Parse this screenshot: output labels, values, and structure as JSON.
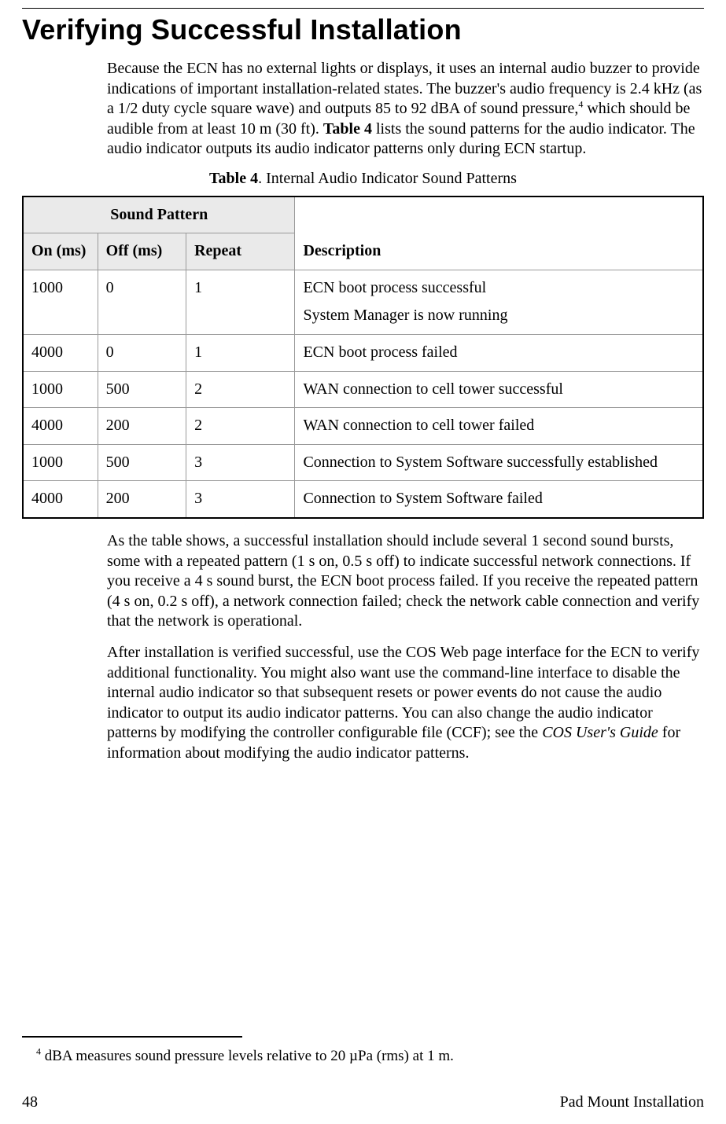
{
  "title": "Verifying Successful Installation",
  "para1": {
    "pre_sup": "Because the ECN has no external lights or displays, it uses an internal audio buzzer to provide indications of important installation-related states.  The buzzer's audio frequency is 2.4 kHz (as a 1/2 duty cycle square wave) and outputs 85 to 92 dBA of sound pressure,",
    "sup": "4",
    "post_sup_pre_bold": " which should be audible from at least 10 m (30 ft).  ",
    "bold": "Table 4",
    "post_bold": " lists the sound patterns for the audio indicator.  The audio indicator outputs its audio indicator patterns only during ECN startup."
  },
  "table_caption": {
    "label": "Table 4",
    "text": ". Internal Audio Indicator Sound Patterns"
  },
  "table": {
    "group_header": "Sound Pattern",
    "headers": {
      "on": "On (ms)",
      "off": "Off (ms)",
      "repeat": "Repeat",
      "desc": "Description"
    },
    "rows": [
      {
        "on": "1000",
        "off": "0",
        "repeat": "1",
        "desc_line1": "ECN boot process successful",
        "desc_line2": "System Manager is now running"
      },
      {
        "on": "4000",
        "off": "0",
        "repeat": "1",
        "desc_line1": "ECN boot process failed",
        "desc_line2": ""
      },
      {
        "on": "1000",
        "off": "500",
        "repeat": "2",
        "desc_line1": "WAN connection to cell tower successful",
        "desc_line2": ""
      },
      {
        "on": "4000",
        "off": "200",
        "repeat": "2",
        "desc_line1": "WAN connection to cell tower failed",
        "desc_line2": ""
      },
      {
        "on": "1000",
        "off": "500",
        "repeat": "3",
        "desc_line1": "Connection to System Software successfully established",
        "desc_line2": ""
      },
      {
        "on": "4000",
        "off": "200",
        "repeat": "3",
        "desc_line1": "Connection to System Software failed",
        "desc_line2": ""
      }
    ]
  },
  "para2": "As the table shows, a successful installation should include several 1 second sound bursts, some with a repeated pattern (1 s on, 0.5 s off) to indicate successful network connections. If you receive a 4 s sound burst, the ECN boot process failed.  If you receive the repeated pattern (4 s on, 0.2 s off), a network connection failed; check the network cable connection and verify that the network is operational.",
  "para3": {
    "pre_italic": "After installation is verified successful, use the COS Web page interface for the ECN to verify additional functionality.  You might also want use the command-line interface to disable the internal audio indicator so that subsequent resets or power events do not cause the audio indicator to output its audio indicator patterns.  You can also change the audio indicator patterns by modifying the controller configurable file (CCF); see the ",
    "italic": "COS User's Guide",
    "post_italic": " for information about modifying the audio indicator patterns."
  },
  "footnote": {
    "sup": "4",
    "text": " dBA measures sound pressure levels relative to 20 µPa (rms) at 1 m."
  },
  "footer": {
    "page": "48",
    "label": "Pad Mount Installation"
  }
}
